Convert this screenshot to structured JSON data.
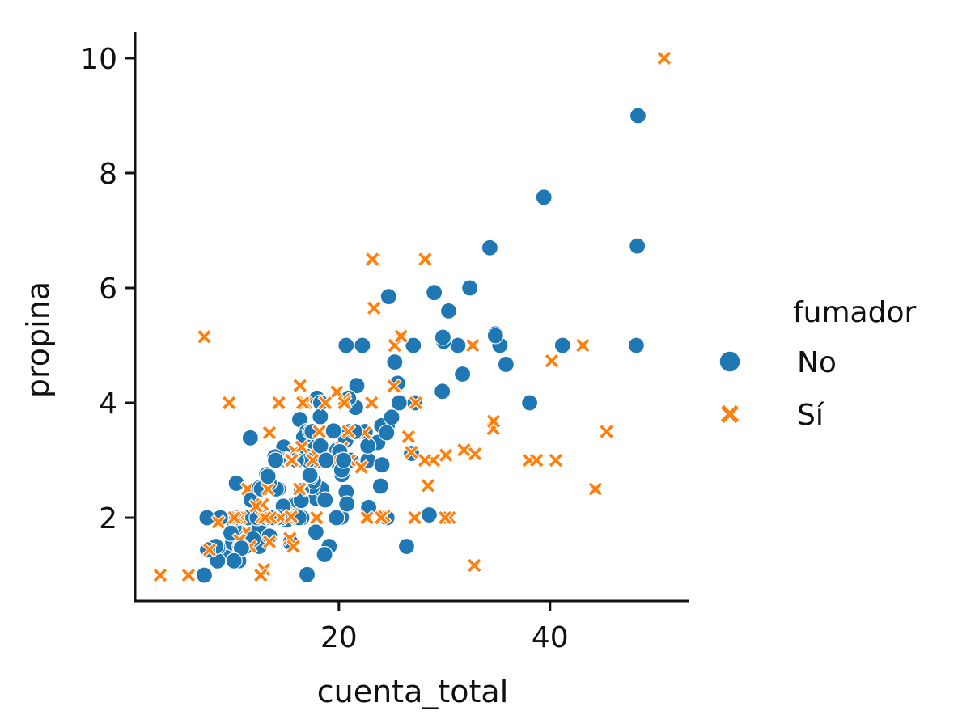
{
  "chart_data": {
    "type": "scatter",
    "title": "",
    "xlabel": "cuenta_total",
    "ylabel": "propina",
    "xlim": [
      0.7,
      53.2
    ],
    "ylim": [
      0.55,
      10.45
    ],
    "xticks": [
      20,
      40
    ],
    "yticks": [
      2,
      4,
      6,
      8,
      10
    ],
    "grid": false,
    "legend": {
      "title": "fumador",
      "placement": "right",
      "entries": [
        {
          "label": "No",
          "marker": "circle",
          "color": "#1f77b4"
        },
        {
          "label": "Sí",
          "marker": "x",
          "color": "#ff7f0e"
        }
      ]
    },
    "series_key": {
      "No": "No",
      "Yes": "Sí"
    },
    "points": [
      [
        16.99,
        1.01,
        "No"
      ],
      [
        10.34,
        1.66,
        "No"
      ],
      [
        21.01,
        3.5,
        "No"
      ],
      [
        23.68,
        3.31,
        "No"
      ],
      [
        24.59,
        3.61,
        "No"
      ],
      [
        25.29,
        4.71,
        "No"
      ],
      [
        8.77,
        2.0,
        "No"
      ],
      [
        26.88,
        3.12,
        "No"
      ],
      [
        15.04,
        1.96,
        "No"
      ],
      [
        14.78,
        3.23,
        "No"
      ],
      [
        10.27,
        1.71,
        "No"
      ],
      [
        35.26,
        5.0,
        "No"
      ],
      [
        15.42,
        1.57,
        "No"
      ],
      [
        18.43,
        3.0,
        "No"
      ],
      [
        14.83,
        3.02,
        "No"
      ],
      [
        21.58,
        3.92,
        "No"
      ],
      [
        10.33,
        1.67,
        "No"
      ],
      [
        16.29,
        3.71,
        "No"
      ],
      [
        16.97,
        3.5,
        "No"
      ],
      [
        20.65,
        3.35,
        "No"
      ],
      [
        17.92,
        4.08,
        "No"
      ],
      [
        20.29,
        2.75,
        "No"
      ],
      [
        15.77,
        2.23,
        "No"
      ],
      [
        39.42,
        7.58,
        "No"
      ],
      [
        19.82,
        3.18,
        "No"
      ],
      [
        17.81,
        2.34,
        "No"
      ],
      [
        13.37,
        2.0,
        "No"
      ],
      [
        12.69,
        2.0,
        "No"
      ],
      [
        21.7,
        4.3,
        "No"
      ],
      [
        19.65,
        3.0,
        "No"
      ],
      [
        9.55,
        1.45,
        "No"
      ],
      [
        18.35,
        2.5,
        "No"
      ],
      [
        15.06,
        3.0,
        "No"
      ],
      [
        20.69,
        2.45,
        "No"
      ],
      [
        17.78,
        3.27,
        "No"
      ],
      [
        24.06,
        3.6,
        "No"
      ],
      [
        16.31,
        2.0,
        "No"
      ],
      [
        16.93,
        3.07,
        "No"
      ],
      [
        18.69,
        2.31,
        "No"
      ],
      [
        31.27,
        5.0,
        "No"
      ],
      [
        16.04,
        2.24,
        "No"
      ],
      [
        17.46,
        2.54,
        "No"
      ],
      [
        13.94,
        3.06,
        "No"
      ],
      [
        9.68,
        1.32,
        "No"
      ],
      [
        30.4,
        5.6,
        "No"
      ],
      [
        18.29,
        3.0,
        "No"
      ],
      [
        22.23,
        5.0,
        "No"
      ],
      [
        32.4,
        6.0,
        "No"
      ],
      [
        28.55,
        2.05,
        "No"
      ],
      [
        18.04,
        3.0,
        "No"
      ],
      [
        12.54,
        2.5,
        "No"
      ],
      [
        10.29,
        2.6,
        "No"
      ],
      [
        34.81,
        5.2,
        "No"
      ],
      [
        9.94,
        1.56,
        "No"
      ],
      [
        25.56,
        4.34,
        "No"
      ],
      [
        19.49,
        3.51,
        "No"
      ],
      [
        38.01,
        3.0,
        "Yes"
      ],
      [
        26.41,
        1.5,
        "No"
      ],
      [
        11.24,
        1.76,
        "Yes"
      ],
      [
        48.27,
        6.73,
        "No"
      ],
      [
        20.29,
        3.21,
        "Yes"
      ],
      [
        13.81,
        2.0,
        "Yes"
      ],
      [
        11.02,
        1.98,
        "Yes"
      ],
      [
        18.29,
        3.76,
        "Yes"
      ],
      [
        17.59,
        2.64,
        "No"
      ],
      [
        20.08,
        3.15,
        "No"
      ],
      [
        16.45,
        2.47,
        "No"
      ],
      [
        3.07,
        1.0,
        "Yes"
      ],
      [
        20.23,
        2.01,
        "No"
      ],
      [
        15.01,
        2.09,
        "Yes"
      ],
      [
        12.02,
        1.97,
        "No"
      ],
      [
        17.07,
        3.0,
        "No"
      ],
      [
        26.86,
        3.14,
        "Yes"
      ],
      [
        25.28,
        5.0,
        "Yes"
      ],
      [
        14.73,
        2.2,
        "No"
      ],
      [
        10.51,
        1.25,
        "No"
      ],
      [
        17.92,
        3.08,
        "Yes"
      ],
      [
        27.2,
        4.0,
        "No"
      ],
      [
        22.76,
        3.0,
        "No"
      ],
      [
        17.29,
        2.71,
        "No"
      ],
      [
        19.44,
        3.0,
        "Yes"
      ],
      [
        16.66,
        3.4,
        "No"
      ],
      [
        10.07,
        1.83,
        "No"
      ],
      [
        32.68,
        5.0,
        "Yes"
      ],
      [
        15.98,
        2.03,
        "No"
      ],
      [
        34.83,
        5.17,
        "No"
      ],
      [
        13.03,
        2.0,
        "No"
      ],
      [
        18.28,
        4.0,
        "No"
      ],
      [
        24.71,
        5.85,
        "No"
      ],
      [
        21.16,
        3.0,
        "No"
      ],
      [
        28.97,
        3.0,
        "Yes"
      ],
      [
        22.49,
        3.5,
        "No"
      ],
      [
        5.75,
        1.0,
        "Yes"
      ],
      [
        16.32,
        4.3,
        "Yes"
      ],
      [
        22.75,
        3.25,
        "No"
      ],
      [
        40.17,
        4.73,
        "Yes"
      ],
      [
        27.28,
        4.0,
        "Yes"
      ],
      [
        12.03,
        1.5,
        "Yes"
      ],
      [
        21.01,
        3.0,
        "Yes"
      ],
      [
        12.46,
        1.5,
        "No"
      ],
      [
        11.35,
        2.5,
        "Yes"
      ],
      [
        15.38,
        3.0,
        "Yes"
      ],
      [
        44.3,
        2.5,
        "Yes"
      ],
      [
        22.42,
        3.48,
        "Yes"
      ],
      [
        20.92,
        4.08,
        "No"
      ],
      [
        15.36,
        1.64,
        "Yes"
      ],
      [
        20.49,
        4.06,
        "Yes"
      ],
      [
        25.21,
        4.29,
        "Yes"
      ],
      [
        18.24,
        3.76,
        "No"
      ],
      [
        14.31,
        4.0,
        "Yes"
      ],
      [
        14.0,
        3.0,
        "No"
      ],
      [
        7.25,
        1.0,
        "No"
      ],
      [
        38.07,
        4.0,
        "No"
      ],
      [
        23.95,
        2.55,
        "No"
      ],
      [
        25.71,
        4.0,
        "No"
      ],
      [
        17.31,
        3.5,
        "No"
      ],
      [
        29.93,
        5.07,
        "No"
      ],
      [
        10.65,
        1.5,
        "No"
      ],
      [
        12.43,
        1.8,
        "No"
      ],
      [
        24.08,
        2.92,
        "No"
      ],
      [
        11.69,
        2.31,
        "No"
      ],
      [
        13.42,
        1.68,
        "No"
      ],
      [
        14.26,
        2.5,
        "No"
      ],
      [
        15.95,
        2.0,
        "No"
      ],
      [
        12.48,
        2.52,
        "No"
      ],
      [
        29.8,
        4.2,
        "No"
      ],
      [
        8.52,
        1.48,
        "No"
      ],
      [
        14.52,
        2.0,
        "No"
      ],
      [
        11.38,
        2.0,
        "No"
      ],
      [
        22.82,
        2.18,
        "No"
      ],
      [
        19.08,
        1.5,
        "No"
      ],
      [
        20.27,
        2.83,
        "No"
      ],
      [
        11.17,
        1.5,
        "No"
      ],
      [
        12.26,
        2.0,
        "No"
      ],
      [
        18.26,
        3.25,
        "No"
      ],
      [
        8.51,
        1.25,
        "No"
      ],
      [
        10.33,
        2.0,
        "No"
      ],
      [
        14.15,
        2.0,
        "No"
      ],
      [
        16.0,
        2.0,
        "Yes"
      ],
      [
        13.16,
        2.75,
        "No"
      ],
      [
        17.47,
        3.5,
        "No"
      ],
      [
        34.3,
        6.7,
        "No"
      ],
      [
        41.19,
        5.0,
        "No"
      ],
      [
        27.05,
        5.0,
        "No"
      ],
      [
        16.43,
        2.3,
        "No"
      ],
      [
        8.35,
        1.5,
        "No"
      ],
      [
        18.64,
        1.36,
        "No"
      ],
      [
        11.87,
        1.63,
        "No"
      ],
      [
        9.78,
        1.73,
        "No"
      ],
      [
        7.51,
        2.0,
        "No"
      ],
      [
        14.07,
        2.5,
        "No"
      ],
      [
        13.13,
        2.0,
        "No"
      ],
      [
        17.26,
        2.74,
        "No"
      ],
      [
        24.55,
        2.0,
        "No"
      ],
      [
        19.77,
        2.0,
        "No"
      ],
      [
        29.85,
        5.14,
        "No"
      ],
      [
        48.17,
        5.0,
        "No"
      ],
      [
        25.0,
        3.75,
        "No"
      ],
      [
        13.39,
        2.61,
        "No"
      ],
      [
        16.49,
        2.0,
        "No"
      ],
      [
        21.5,
        3.5,
        "No"
      ],
      [
        12.66,
        2.5,
        "No"
      ],
      [
        16.21,
        2.0,
        "No"
      ],
      [
        13.81,
        2.0,
        "No"
      ],
      [
        17.51,
        3.0,
        "Yes"
      ],
      [
        24.52,
        3.48,
        "No"
      ],
      [
        20.76,
        2.24,
        "No"
      ],
      [
        31.71,
        4.5,
        "No"
      ],
      [
        10.59,
        1.61,
        "Yes"
      ],
      [
        10.63,
        2.0,
        "Yes"
      ],
      [
        50.81,
        10.0,
        "Yes"
      ],
      [
        15.81,
        3.16,
        "Yes"
      ],
      [
        7.25,
        5.15,
        "Yes"
      ],
      [
        31.85,
        3.18,
        "Yes"
      ],
      [
        16.82,
        4.0,
        "Yes"
      ],
      [
        32.9,
        3.11,
        "Yes"
      ],
      [
        17.89,
        2.0,
        "Yes"
      ],
      [
        14.48,
        2.0,
        "Yes"
      ],
      [
        9.6,
        4.0,
        "Yes"
      ],
      [
        34.63,
        3.55,
        "Yes"
      ],
      [
        34.65,
        3.68,
        "Yes"
      ],
      [
        23.33,
        5.65,
        "Yes"
      ],
      [
        45.35,
        3.5,
        "Yes"
      ],
      [
        23.17,
        6.5,
        "Yes"
      ],
      [
        40.55,
        3.0,
        "Yes"
      ],
      [
        20.69,
        5.0,
        "No"
      ],
      [
        20.9,
        3.5,
        "Yes"
      ],
      [
        30.46,
        2.0,
        "Yes"
      ],
      [
        18.15,
        3.5,
        "Yes"
      ],
      [
        23.1,
        4.0,
        "Yes"
      ],
      [
        15.69,
        1.5,
        "Yes"
      ],
      [
        19.81,
        4.19,
        "Yes"
      ],
      [
        28.44,
        2.56,
        "Yes"
      ],
      [
        15.48,
        2.02,
        "Yes"
      ],
      [
        16.58,
        4.0,
        "Yes"
      ],
      [
        7.56,
        1.44,
        "No"
      ],
      [
        10.34,
        2.0,
        "Yes"
      ],
      [
        43.11,
        5.0,
        "Yes"
      ],
      [
        13.0,
        2.0,
        "Yes"
      ],
      [
        13.51,
        2.0,
        "Yes"
      ],
      [
        18.71,
        4.0,
        "Yes"
      ],
      [
        12.74,
        2.01,
        "Yes"
      ],
      [
        13.0,
        2.0,
        "Yes"
      ],
      [
        16.4,
        2.5,
        "Yes"
      ],
      [
        20.53,
        4.0,
        "Yes"
      ],
      [
        16.47,
        3.23,
        "Yes"
      ],
      [
        26.59,
        3.41,
        "Yes"
      ],
      [
        38.73,
        3.0,
        "Yes"
      ],
      [
        24.27,
        2.03,
        "Yes"
      ],
      [
        12.76,
        2.23,
        "Yes"
      ],
      [
        30.06,
        2.0,
        "Yes"
      ],
      [
        25.89,
        5.16,
        "Yes"
      ],
      [
        48.33,
        9.0,
        "No"
      ],
      [
        13.27,
        2.5,
        "Yes"
      ],
      [
        28.17,
        6.5,
        "Yes"
      ],
      [
        12.9,
        1.1,
        "Yes"
      ],
      [
        28.15,
        3.0,
        "Yes"
      ],
      [
        11.59,
        1.5,
        "Yes"
      ],
      [
        7.74,
        1.44,
        "Yes"
      ],
      [
        30.14,
        3.09,
        "Yes"
      ],
      [
        12.16,
        2.2,
        "Yes"
      ],
      [
        13.42,
        3.48,
        "Yes"
      ],
      [
        8.58,
        1.92,
        "Yes"
      ],
      [
        15.98,
        3.0,
        "No"
      ],
      [
        13.42,
        1.58,
        "Yes"
      ],
      [
        16.27,
        2.5,
        "Yes"
      ],
      [
        10.09,
        2.0,
        "Yes"
      ],
      [
        20.45,
        3.0,
        "No"
      ],
      [
        13.28,
        2.72,
        "No"
      ],
      [
        22.12,
        2.88,
        "Yes"
      ],
      [
        24.01,
        2.0,
        "Yes"
      ],
      [
        15.69,
        3.0,
        "Yes"
      ],
      [
        11.61,
        3.39,
        "No"
      ],
      [
        10.77,
        1.47,
        "No"
      ],
      [
        15.53,
        3.0,
        "Yes"
      ],
      [
        10.07,
        1.25,
        "No"
      ],
      [
        12.6,
        1.0,
        "Yes"
      ],
      [
        32.83,
        1.17,
        "Yes"
      ],
      [
        35.83,
        4.67,
        "No"
      ],
      [
        29.03,
        5.92,
        "No"
      ],
      [
        27.18,
        2.0,
        "Yes"
      ],
      [
        22.67,
        2.0,
        "Yes"
      ],
      [
        17.82,
        1.75,
        "No"
      ],
      [
        18.78,
        3.0,
        "No"
      ]
    ]
  }
}
